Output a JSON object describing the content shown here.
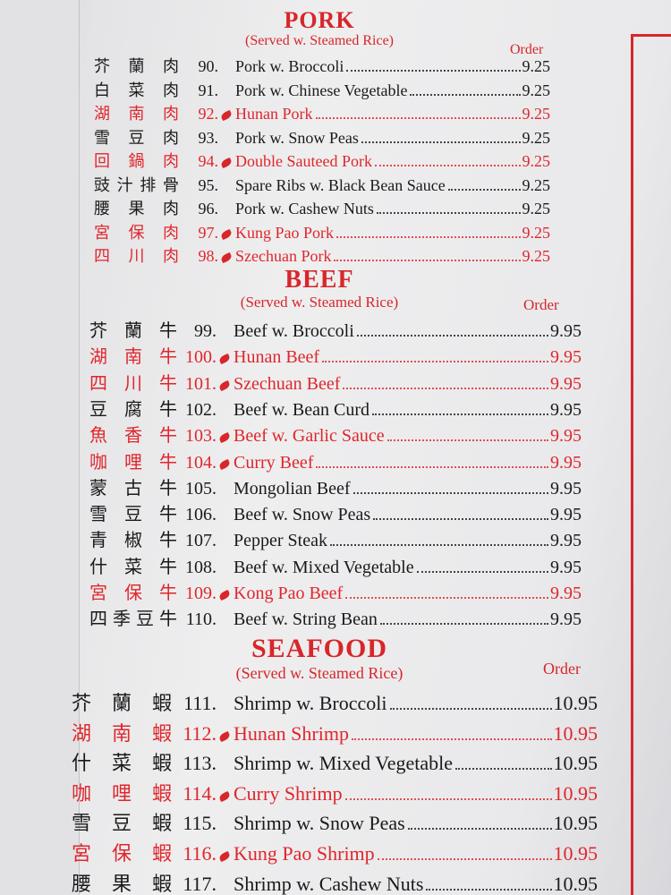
{
  "sections": [
    {
      "title": "PORK",
      "subtitle": "(Served w. Steamed Rice)",
      "order_label": "Order",
      "items": [
        {
          "chinese": "芥蘭肉",
          "number": "90.",
          "name": "Pork w. Broccoli",
          "price": "9.25",
          "spicy": false
        },
        {
          "chinese": "白菜肉",
          "number": "91.",
          "name": "Pork w. Chinese Vegetable",
          "price": "9.25",
          "spicy": false
        },
        {
          "chinese": "湖南肉",
          "number": "92.",
          "name": "Hunan Pork",
          "price": "9.25",
          "spicy": true
        },
        {
          "chinese": "雪豆肉",
          "number": "93.",
          "name": "Pork w. Snow Peas",
          "price": "9.25",
          "spicy": false
        },
        {
          "chinese": "回鍋肉",
          "number": "94.",
          "name": "Double Sauteed Pork",
          "price": "9.25",
          "spicy": true
        },
        {
          "chinese": "豉汁排骨",
          "number": "95.",
          "name": "Spare Ribs w. Black Bean Sauce",
          "price": "9.25",
          "spicy": false
        },
        {
          "chinese": "腰果肉",
          "number": "96.",
          "name": "Pork w. Cashew Nuts",
          "price": "9.25",
          "spicy": false
        },
        {
          "chinese": "宮保肉",
          "number": "97.",
          "name": "Kung Pao Pork",
          "price": "9.25",
          "spicy": true
        },
        {
          "chinese": "四川肉",
          "number": "98.",
          "name": "Szechuan Pork",
          "price": "9.25",
          "spicy": true
        }
      ]
    },
    {
      "title": "BEEF",
      "subtitle": "(Served w. Steamed Rice)",
      "order_label": "Order",
      "items": [
        {
          "chinese": "芥蘭牛",
          "number": "99.",
          "name": "Beef w. Broccoli",
          "price": "9.95",
          "spicy": false
        },
        {
          "chinese": "湖南牛",
          "number": "100.",
          "name": "Hunan Beef",
          "price": "9.95",
          "spicy": true
        },
        {
          "chinese": "四川牛",
          "number": "101.",
          "name": "Szechuan Beef",
          "price": "9.95",
          "spicy": true
        },
        {
          "chinese": "豆腐牛",
          "number": "102.",
          "name": "Beef w. Bean Curd",
          "price": "9.95",
          "spicy": false
        },
        {
          "chinese": "魚香牛",
          "number": "103.",
          "name": "Beef w. Garlic Sauce",
          "price": "9.95",
          "spicy": true
        },
        {
          "chinese": "咖哩牛",
          "number": "104.",
          "name": "Curry Beef",
          "price": "9.95",
          "spicy": true
        },
        {
          "chinese": "蒙古牛",
          "number": "105.",
          "name": "Mongolian Beef",
          "price": "9.95",
          "spicy": false
        },
        {
          "chinese": "雪豆牛",
          "number": "106.",
          "name": "Beef w. Snow Peas",
          "price": "9.95",
          "spicy": false
        },
        {
          "chinese": "青椒牛",
          "number": "107.",
          "name": "Pepper Steak",
          "price": "9.95",
          "spicy": false
        },
        {
          "chinese": "什菜牛",
          "number": "108.",
          "name": "Beef w. Mixed Vegetable",
          "price": "9.95",
          "spicy": false
        },
        {
          "chinese": "宮保牛",
          "number": "109.",
          "name": "Kong Pao Beef",
          "price": "9.95",
          "spicy": true
        },
        {
          "chinese": "四季豆牛",
          "number": "110.",
          "name": "Beef w. String Bean",
          "price": "9.95",
          "spicy": false
        }
      ]
    },
    {
      "title": "SEAFOOD",
      "subtitle": "(Served w. Steamed Rice)",
      "order_label": "Order",
      "items": [
        {
          "chinese": "芥蘭蝦",
          "number": "111.",
          "name": "Shrimp w. Broccoli",
          "price": "10.95",
          "spicy": false
        },
        {
          "chinese": "湖南蝦",
          "number": "112.",
          "name": "Hunan Shrimp",
          "price": "10.95",
          "spicy": true
        },
        {
          "chinese": "什菜蝦",
          "number": "113.",
          "name": "Shrimp w. Mixed Vegetable",
          "price": "10.95",
          "spicy": false
        },
        {
          "chinese": "咖哩蝦",
          "number": "114.",
          "name": "Curry Shrimp",
          "price": "10.95",
          "spicy": true
        },
        {
          "chinese": "雪豆蝦",
          "number": "115.",
          "name": "Shrimp w. Snow Peas",
          "price": "10.95",
          "spicy": false
        },
        {
          "chinese": "宮保蝦",
          "number": "116.",
          "name": "Kung Pao Shrimp",
          "price": "10.95",
          "spicy": true
        },
        {
          "chinese": "腰果蝦",
          "number": "117.",
          "name": "Shrimp w. Cashew Nuts",
          "price": "10.95",
          "spicy": false
        }
      ]
    }
  ]
}
